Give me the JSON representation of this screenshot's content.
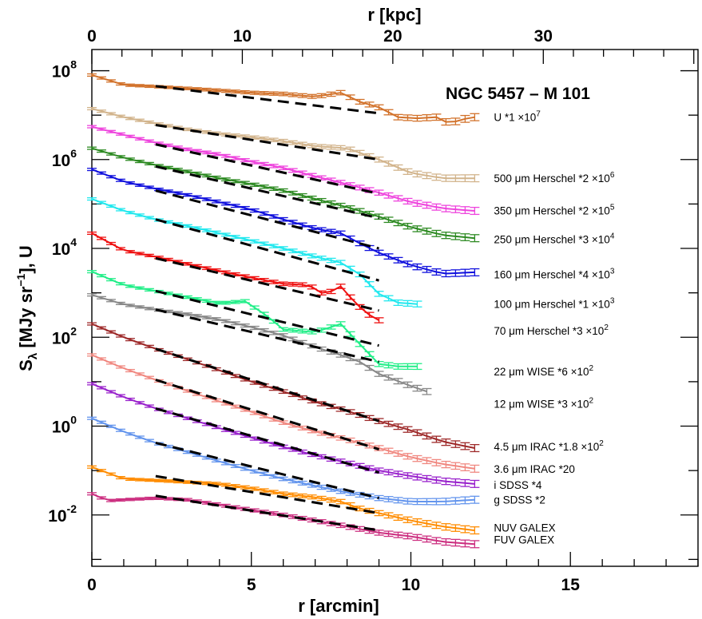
{
  "chart_data": {
    "type": "line",
    "title": "NGC 5457 – M 101",
    "xlabel": "r [arcmin]",
    "x2label": "r [kpc]",
    "ylabel": "S_λ [MJy sr^-1], U",
    "ylabel_parts": {
      "main": "S",
      "sub": "λ",
      "mid": " [MJy sr",
      "sup": "−1",
      "end": "], U"
    },
    "xlim": [
      0,
      19
    ],
    "ylim": [
      0.0007,
      300000000
    ],
    "y_scale": "log",
    "x_ticks": [
      "0",
      "5",
      "10",
      "15"
    ],
    "x_tick_values": [
      0,
      5,
      10,
      15
    ],
    "x2_ticks": [
      "0",
      "10",
      "20",
      "30"
    ],
    "x2_tick_values": [
      0,
      10,
      20,
      30
    ],
    "kpc_per_arcmin": 2.12,
    "y_ticks": [
      {
        "base": "10",
        "exp": "8",
        "value": 100000000
      },
      {
        "base": "10",
        "exp": "6",
        "value": 1000000
      },
      {
        "base": "10",
        "exp": "4",
        "value": 10000
      },
      {
        "base": "10",
        "exp": "2",
        "value": 100
      },
      {
        "base": "10",
        "exp": "0",
        "value": 1
      },
      {
        "base": "10",
        "exp": "-2",
        "value": 0.01
      }
    ],
    "fit_range": [
      2.0,
      9.0
    ],
    "series": [
      {
        "name": "U *1 ×10",
        "sup": "7",
        "color": "#d2722b",
        "x_end": 12.0,
        "label_x": 12.6,
        "label_y": 9000000,
        "x": [
          0,
          1,
          2,
          3,
          4,
          5,
          6,
          7,
          7.8,
          8.4,
          9,
          9.6,
          10.2,
          10.8,
          11.2,
          11.6,
          12.0
        ],
        "y": [
          80000000,
          48000000,
          44000000,
          40000000,
          36000000,
          32000000,
          30000000,
          26000000,
          32000000,
          20000000,
          15000000,
          9000000,
          8500000,
          9000000,
          6500000,
          8000000,
          9000000
        ],
        "fit": [
          45000000,
          11000000
        ]
      },
      {
        "name": "500 μm Herschel *2 ×10",
        "sup": "6",
        "color": "#d2b48c",
        "x_end": 12.0,
        "label_x": 12.6,
        "label_y": 380000,
        "x": [
          0,
          1,
          2,
          3,
          4,
          5,
          6,
          7,
          8,
          9,
          10,
          11,
          12
        ],
        "y": [
          14000000,
          9000000,
          6500000,
          4800000,
          3800000,
          3200000,
          2600000,
          2000000,
          1800000,
          1000000,
          500000,
          380000,
          380000
        ],
        "fit": [
          6000000,
          1000000
        ]
      },
      {
        "name": "350 μm Herschel *2 ×10",
        "sup": "5",
        "color": "#ee44dd",
        "x_end": 12.0,
        "label_x": 12.6,
        "label_y": 72000,
        "x": [
          0,
          1,
          2,
          3,
          4,
          5,
          6,
          7,
          8,
          9,
          10,
          11,
          12
        ],
        "y": [
          5500000,
          3600000,
          2400000,
          1700000,
          1300000,
          900000,
          650000,
          420000,
          280000,
          180000,
          110000,
          80000,
          70000
        ],
        "fit": [
          2200000,
          170000
        ]
      },
      {
        "name": "250 μm Herschel *3 ×10",
        "sup": "4",
        "color": "#2d8a22",
        "x_end": 12.0,
        "label_x": 12.6,
        "label_y": 16000,
        "x": [
          0,
          1,
          2,
          3,
          4,
          5,
          6,
          7,
          8,
          9,
          10,
          11,
          12
        ],
        "y": [
          1800000,
          1100000,
          750000,
          540000,
          380000,
          280000,
          200000,
          130000,
          85000,
          52000,
          30000,
          20000,
          17000
        ],
        "fit": [
          700000,
          48000
        ]
      },
      {
        "name": "160 μm Herschel *4 ×10",
        "sup": "3",
        "color": "#1111dd",
        "x_end": 12.0,
        "label_x": 12.6,
        "label_y": 2600,
        "x": [
          0,
          1,
          2,
          3,
          4,
          5,
          6,
          7,
          7.8,
          8.4,
          9,
          10,
          11,
          12
        ],
        "y": [
          600000,
          320000,
          220000,
          160000,
          110000,
          75000,
          45000,
          28000,
          22000,
          13000,
          8000,
          4200,
          2700,
          2900
        ],
        "fit": [
          200000,
          10000
        ]
      },
      {
        "name": "100 μm Herschel *1 ×10",
        "sup": "3",
        "color": "#22e8ee",
        "x_end": 10.2,
        "label_x": 12.6,
        "label_y": 560,
        "x": [
          0,
          1,
          2,
          3,
          4,
          5,
          6,
          7,
          7.8,
          8.4,
          9,
          9.6,
          10.2
        ],
        "y": [
          130000,
          70000,
          45000,
          32000,
          22000,
          15000,
          10000,
          6500,
          4800,
          2600,
          950,
          600,
          560
        ],
        "fit": [
          45000,
          1900
        ]
      },
      {
        "name": "70 μm Herschel *3 ×10",
        "sup": "2",
        "color": "#ee1111",
        "x_end": 9.2,
        "label_x": 12.6,
        "label_y": 140,
        "x": [
          0,
          1,
          2,
          3,
          4,
          5,
          6,
          6.8,
          7.3,
          7.8,
          8.3,
          8.7,
          9.2
        ],
        "y": [
          22000,
          9000,
          6500,
          4500,
          3100,
          2200,
          1600,
          1500,
          900,
          1400,
          550,
          320,
          200
        ],
        "fit": [
          6000,
          400
        ]
      },
      {
        "name": "22 μm WISE  *6 ×10",
        "sup": "2",
        "color": "#22ee88",
        "x_end": 10.2,
        "label_x": 12.6,
        "label_y": 17,
        "x": [
          0,
          1,
          2,
          3,
          4,
          4.8,
          5.5,
          6,
          7,
          7.8,
          8.4,
          9,
          9.6,
          10.2
        ],
        "y": [
          3000,
          1500,
          1100,
          800,
          580,
          650,
          300,
          150,
          130,
          200,
          70,
          25,
          22,
          22
        ],
        "fit": [
          1100,
          65
        ]
      },
      {
        "name": "12 μm WISE  *3 ×10",
        "sup": "2",
        "color": "#888888",
        "x_end": 10.5,
        "label_x": 12.6,
        "label_y": 3.2,
        "x": [
          0,
          1,
          2,
          3,
          4,
          5,
          6,
          7,
          7.8,
          8.4,
          9,
          10,
          10.5
        ],
        "y": [
          900,
          550,
          420,
          330,
          250,
          170,
          110,
          60,
          40,
          28,
          15,
          8,
          6
        ],
        "fit": [
          420,
          28
        ]
      },
      {
        "name": "4.5 μm IRAC *1.8 ×10",
        "sup": "2",
        "color": "#9e2a2a",
        "x_end": 12.0,
        "label_x": 12.6,
        "label_y": 0.35,
        "x": [
          0,
          1,
          2,
          3,
          4,
          5,
          6,
          7,
          8,
          9,
          10,
          11,
          12
        ],
        "y": [
          200,
          100,
          55,
          32,
          18,
          10,
          6,
          3.5,
          2.2,
          1.3,
          0.8,
          0.45,
          0.32
        ],
        "fit": [
          55,
          1.3
        ]
      },
      {
        "name": "3.6 μm IRAC *20",
        "sup": "",
        "color": "#f08880",
        "x_end": 12.0,
        "label_x": 12.6,
        "label_y": 0.11,
        "x": [
          0,
          1,
          2,
          3,
          4,
          5,
          6,
          7,
          8,
          9,
          10,
          11,
          12
        ],
        "y": [
          40,
          20,
          11,
          6.2,
          3.6,
          2.1,
          1.2,
          0.75,
          0.5,
          0.32,
          0.2,
          0.14,
          0.11
        ],
        "fit": [
          11,
          0.3
        ]
      },
      {
        "name": "i SDSS *4",
        "sup": "",
        "color": "#9922cc",
        "x_end": 12.0,
        "label_x": 12.6,
        "label_y": 0.048,
        "x": [
          0,
          1,
          2,
          3,
          4,
          5,
          6,
          7,
          8,
          9,
          10,
          11,
          12
        ],
        "y": [
          9,
          4.5,
          2.5,
          1.5,
          0.9,
          0.55,
          0.34,
          0.22,
          0.15,
          0.1,
          0.075,
          0.058,
          0.05
        ],
        "fit": [
          2.5,
          0.09
        ]
      },
      {
        "name": "g SDSS *2",
        "sup": "",
        "color": "#6495ed",
        "x_end": 12.0,
        "label_x": 12.6,
        "label_y": 0.022,
        "x": [
          0,
          1,
          2,
          3,
          4,
          5,
          6,
          7,
          8,
          9,
          10,
          11,
          12
        ],
        "y": [
          1.5,
          0.75,
          0.42,
          0.26,
          0.16,
          0.1,
          0.065,
          0.045,
          0.032,
          0.024,
          0.02,
          0.02,
          0.022
        ],
        "fit": [
          0.42,
          0.024
        ]
      },
      {
        "name": "NUV GALEX",
        "sup": "",
        "color": "#ff8c00",
        "x_end": 12.0,
        "label_x": 12.6,
        "label_y": 0.0052,
        "x": [
          0,
          1,
          2,
          3,
          4,
          5,
          6,
          7,
          7.8,
          8.4,
          9,
          10,
          11,
          12
        ],
        "y": [
          0.12,
          0.065,
          0.06,
          0.055,
          0.05,
          0.04,
          0.03,
          0.025,
          0.02,
          0.014,
          0.011,
          0.0075,
          0.0055,
          0.0045
        ],
        "fit": [
          0.075,
          0.011
        ]
      },
      {
        "name": "FUV GALEX",
        "sup": "",
        "color": "#cc2f80",
        "x_end": 12.0,
        "label_x": 12.6,
        "label_y": 0.0028,
        "x": [
          0,
          0.5,
          1,
          2,
          3,
          4,
          5,
          6,
          7,
          8,
          9,
          10,
          11,
          12
        ],
        "y": [
          0.03,
          0.021,
          0.022,
          0.024,
          0.022,
          0.017,
          0.013,
          0.01,
          0.0075,
          0.0055,
          0.004,
          0.0033,
          0.0025,
          0.0022
        ],
        "fit": [
          0.027,
          0.0045
        ]
      }
    ]
  }
}
